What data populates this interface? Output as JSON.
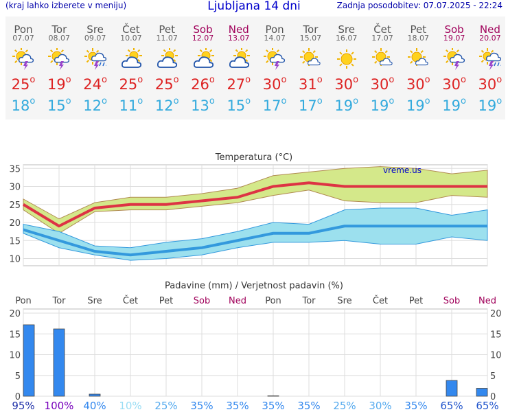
{
  "header": {
    "menu_hint": "(kraj lahko izberete v meniju)",
    "title": "Ljubljana 14 dni",
    "updated": "Zadnja posodobitev: 07.07.2025 - 22:24"
  },
  "days": [
    {
      "name": "Pon",
      "date": "07.07",
      "icon": "sun-cloud-storm-icon",
      "weekend": false,
      "max": "25",
      "min": "18"
    },
    {
      "name": "Tor",
      "date": "08.07",
      "icon": "sun-cloud-storm-icon",
      "weekend": false,
      "max": "19",
      "min": "15"
    },
    {
      "name": "Sre",
      "date": "09.07",
      "icon": "sun-cloud-rain-storm-icon",
      "weekend": false,
      "max": "24",
      "min": "12"
    },
    {
      "name": "Čet",
      "date": "10.07",
      "icon": "sun-cloud-icon",
      "weekend": false,
      "max": "25",
      "min": "11"
    },
    {
      "name": "Pet",
      "date": "11.07",
      "icon": "sun-cloud-icon",
      "weekend": false,
      "max": "25",
      "min": "12"
    },
    {
      "name": "Sob",
      "date": "12.07",
      "icon": "sun-cloud-icon",
      "weekend": true,
      "max": "26",
      "min": "13"
    },
    {
      "name": "Ned",
      "date": "13.07",
      "icon": "sun-cloud-icon",
      "weekend": true,
      "max": "27",
      "min": "15"
    },
    {
      "name": "Pon",
      "date": "14.07",
      "icon": "sun-cloud-storm-icon",
      "weekend": false,
      "max": "30",
      "min": "17"
    },
    {
      "name": "Tor",
      "date": "15.07",
      "icon": "sun-small-cloud-icon",
      "weekend": false,
      "max": "31",
      "min": "17"
    },
    {
      "name": "Sre",
      "date": "16.07",
      "icon": "sun-icon",
      "weekend": false,
      "max": "30",
      "min": "19"
    },
    {
      "name": "Čet",
      "date": "17.07",
      "icon": "sun-small-cloud-icon",
      "weekend": false,
      "max": "30",
      "min": "19"
    },
    {
      "name": "Pet",
      "date": "18.07",
      "icon": "sun-small-cloud-icon",
      "weekend": false,
      "max": "30",
      "min": "19"
    },
    {
      "name": "Sob",
      "date": "19.07",
      "icon": "sun-cloud-storm-icon",
      "weekend": true,
      "max": "30",
      "min": "19"
    },
    {
      "name": "Ned",
      "date": "20.07",
      "icon": "sun-cloud-rain-storm-icon",
      "weekend": true,
      "max": "30",
      "min": "19"
    }
  ],
  "colors": {
    "max_temp": "#dd2222",
    "min_temp": "#33aadd",
    "weekend": "#a0005a",
    "rain_bar": "#3388ee",
    "max_band": "#d4e88a",
    "min_band": "#9ce0ee"
  },
  "chart_data": [
    {
      "type": "line",
      "title": "Temperatura (°C)",
      "watermark": "vreme.us",
      "ylim": [
        8,
        36
      ],
      "yticks": [
        10,
        15,
        20,
        25,
        30,
        35
      ],
      "grid": true,
      "series": [
        {
          "values": [
            25,
            19,
            24,
            25,
            25,
            26,
            27,
            30,
            31,
            30,
            30,
            30,
            30,
            30
          ]
        },
        {
          "values": [
            26.5,
            21,
            25.5,
            27,
            27,
            28,
            29.5,
            33,
            34,
            35,
            35.5,
            35,
            33.5,
            34.5
          ]
        },
        {
          "values": [
            23.5,
            17,
            23,
            23.5,
            23.5,
            24.5,
            25.5,
            27.5,
            29,
            26,
            25.5,
            25.5,
            27.5,
            27
          ]
        },
        {
          "values": [
            18,
            15,
            12,
            11,
            12,
            13,
            15,
            17,
            17,
            19,
            19,
            19,
            19,
            19
          ]
        },
        {
          "values": [
            19.5,
            17.5,
            13.5,
            13,
            14.5,
            15.5,
            17.5,
            20,
            19.5,
            23.5,
            24,
            24,
            22,
            23.5
          ]
        },
        {
          "values": [
            17,
            13,
            11,
            9.5,
            10,
            11,
            13,
            14.5,
            14.5,
            15,
            14,
            14,
            16,
            15
          ]
        }
      ]
    },
    {
      "type": "bar",
      "title": "Padavine (mm) / Verjetnost padavin (%)",
      "categories": [
        "Pon",
        "Tor",
        "Sre",
        "Čet",
        "Pet",
        "Sob",
        "Ned",
        "Pon",
        "Tor",
        "Sre",
        "Čet",
        "Pet",
        "Sob",
        "Ned"
      ],
      "ylim": [
        0,
        21
      ],
      "yticks": [
        0,
        5,
        10,
        15,
        20
      ],
      "values": [
        17.2,
        16.2,
        0.5,
        0,
        0,
        0,
        0,
        0.1,
        0,
        0,
        0,
        0,
        3.8,
        1.9
      ],
      "probabilities": [
        "95%",
        "100%",
        "40%",
        "10%",
        "25%",
        "35%",
        "35%",
        "35%",
        "35%",
        "25%",
        "30%",
        "35%",
        "65%",
        "65%"
      ],
      "probability_values": [
        95,
        100,
        40,
        10,
        25,
        35,
        35,
        35,
        35,
        25,
        30,
        35,
        65,
        65
      ]
    }
  ]
}
